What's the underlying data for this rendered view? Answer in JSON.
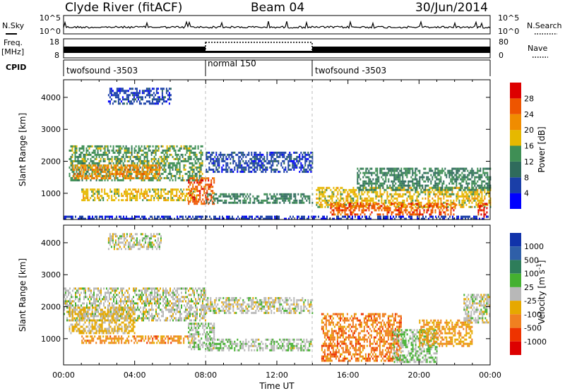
{
  "header": {
    "station": "Clyde River (fitACF)",
    "beam": "Beam 04",
    "date": "30/Jun/2014"
  },
  "noise_panel": {
    "left_label": "N.Sky",
    "left_ticks": [
      "10^5",
      "10^0"
    ],
    "right_label": "N.Search",
    "right_ticks": [
      "10^5",
      "10^0"
    ]
  },
  "freq_panel": {
    "left_label": "Freq.",
    "left_unit": "[MHz]",
    "left_ticks": [
      "18",
      "8"
    ],
    "right_label": "Nave",
    "right_ticks": [
      "80",
      "0"
    ]
  },
  "cpid_panel": {
    "label": "CPID",
    "segments": [
      {
        "name": "twofsound -3503",
        "start": 0,
        "end": 8
      },
      {
        "name": "normal 150",
        "start": 8,
        "end": 14
      },
      {
        "name": "twofsound -3503",
        "start": 14,
        "end": 24
      }
    ]
  },
  "x_axis": {
    "ticks": [
      "00:00",
      "04:00",
      "08:00",
      "12:00",
      "16:00",
      "20:00",
      "00:00"
    ],
    "label": "Time UT"
  },
  "power_colorbar": {
    "label": "Power [dB]",
    "ticks": [
      "28",
      "24",
      "20",
      "16",
      "12",
      "8",
      "4"
    ],
    "colors": [
      "#0000ff",
      "#1a3fa8",
      "#2f6b5c",
      "#3f8f55",
      "#e6b800",
      "#f08c00",
      "#ee5500",
      "#dd0000"
    ]
  },
  "velocity_colorbar": {
    "label": "Velocity [m s",
    "label_sup": "-1",
    "label_end": "]",
    "ticks": [
      "1000",
      "500",
      "100",
      "25",
      "-25",
      "-100",
      "-500",
      "-1000"
    ],
    "colors": [
      "#1133aa",
      "#2f5fa8",
      "#2e7d5a",
      "#44b030",
      "#b8b8b8",
      "#e6a800",
      "#f08020",
      "#ee3300",
      "#dd0000"
    ]
  },
  "chart_data": [
    {
      "type": "heatmap",
      "title": "Power",
      "xlabel": "Time UT",
      "ylabel": "Slant Range [km]",
      "xlim": [
        0,
        24
      ],
      "ylim": [
        180,
        4550
      ],
      "yticks": [
        1000,
        2000,
        3000,
        4000
      ],
      "zlabel": "Power [dB]",
      "zlim": [
        0,
        32
      ],
      "regions": [
        {
          "t": [
            0.3,
            7.8
          ],
          "r": [
            1400,
            2500
          ],
          "value": 14
        },
        {
          "t": [
            0.5,
            5.5
          ],
          "r": [
            1450,
            1900
          ],
          "value": 22
        },
        {
          "t": [
            1.0,
            7.5
          ],
          "r": [
            800,
            1150
          ],
          "value": 18
        },
        {
          "t": [
            7.0,
            8.5
          ],
          "r": [
            700,
            1500
          ],
          "value": 26
        },
        {
          "t": [
            8.0,
            14.0
          ],
          "r": [
            1700,
            2300
          ],
          "value": 6
        },
        {
          "t": [
            8.0,
            14.0
          ],
          "r": [
            700,
            1000
          ],
          "value": 12
        },
        {
          "t": [
            14.2,
            24.0
          ],
          "r": [
            600,
            1200
          ],
          "value": 18
        },
        {
          "t": [
            15.0,
            22.0
          ],
          "r": [
            350,
            700
          ],
          "value": 26
        },
        {
          "t": [
            16.5,
            24.0
          ],
          "r": [
            1100,
            1800
          ],
          "value": 12
        },
        {
          "t": [
            2.5,
            6.0
          ],
          "r": [
            3800,
            4300
          ],
          "value": 6
        },
        {
          "t": [
            23.3,
            23.8
          ],
          "r": [
            250,
            700
          ],
          "value": 29
        },
        {
          "t": [
            0.0,
            24.0
          ],
          "r": [
            200,
            300
          ],
          "value": 5
        }
      ]
    },
    {
      "type": "heatmap",
      "title": "Velocity",
      "xlabel": "Time UT",
      "ylabel": "Slant Range [km]",
      "xlim": [
        0,
        24
      ],
      "ylim": [
        180,
        4550
      ],
      "yticks": [
        1000,
        2000,
        3000,
        4000
      ],
      "zlabel": "Velocity [m s-1]",
      "zlim": [
        -1000,
        1000
      ],
      "regions": [
        {
          "t": [
            0.0,
            8.0
          ],
          "r": [
            1600,
            2600
          ],
          "value": 0
        },
        {
          "t": [
            0.3,
            4.0
          ],
          "r": [
            1200,
            2000
          ],
          "value": -150
        },
        {
          "t": [
            1.0,
            7.5
          ],
          "r": [
            850,
            1100
          ],
          "value": -400
        },
        {
          "t": [
            7.0,
            8.5
          ],
          "r": [
            700,
            1500
          ],
          "value": 50
        },
        {
          "t": [
            8.0,
            14.0
          ],
          "r": [
            1800,
            2300
          ],
          "value": 0
        },
        {
          "t": [
            8.0,
            14.0
          ],
          "r": [
            650,
            1000
          ],
          "value": 60
        },
        {
          "t": [
            14.5,
            19.0
          ],
          "r": [
            300,
            1800
          ],
          "value": -450
        },
        {
          "t": [
            18.5,
            21.0
          ],
          "r": [
            300,
            1300
          ],
          "value": 120
        },
        {
          "t": [
            20.0,
            23.0
          ],
          "r": [
            800,
            1600
          ],
          "value": -300
        },
        {
          "t": [
            22.5,
            24.0
          ],
          "r": [
            1500,
            2400
          ],
          "value": 0
        },
        {
          "t": [
            2.5,
            5.5
          ],
          "r": [
            3800,
            4300
          ],
          "value": 0
        }
      ]
    }
  ]
}
